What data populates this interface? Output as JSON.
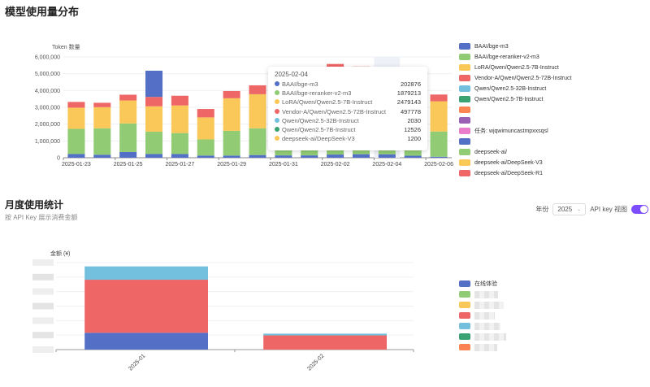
{
  "usage_section": {
    "title": "模型使用量分布"
  },
  "chart_data": [
    {
      "type": "bar",
      "stacked": true,
      "ylabel": "Token 数量",
      "ylim": [
        0,
        6000000
      ],
      "yticks": [
        "0",
        "1,000,000",
        "2,000,000",
        "3,000,000",
        "4,000,000",
        "5,000,000",
        "6,000,000"
      ],
      "categories": [
        "2025-01-23",
        "2025-01-24",
        "2025-01-25",
        "2025-01-26",
        "2025-01-27",
        "2025-01-28",
        "2025-01-29",
        "2025-01-30",
        "2025-01-31",
        "2025-02-01",
        "2025-02-02",
        "2025-02-03",
        "2025-02-04",
        "2025-02-05",
        "2025-02-06"
      ],
      "xticks": [
        "2025-01-23",
        "2025-01-25",
        "2025-01-27",
        "2025-01-29",
        "2025-01-31",
        "2025-02-02",
        "2025-02-04",
        "2025-02-06"
      ],
      "grid": true,
      "legend_position": "right",
      "series": [
        {
          "name": "BAAI/bge-m3",
          "color": "#5470c6",
          "values": [
            220000,
            180000,
            340000,
            220000,
            220000,
            130000,
            130000,
            160000,
            140000,
            140000,
            190000,
            210000,
            202876,
            120000,
            60000
          ]
        },
        {
          "name": "BAAI/bge-reranker-v2-m3",
          "color": "#91cc75",
          "values": [
            1500000,
            1570000,
            1700000,
            1330000,
            1250000,
            960000,
            1470000,
            1590000,
            1650000,
            1810000,
            2110000,
            2060000,
            1879213,
            1800000,
            1500000
          ]
        },
        {
          "name": "LoRA/Qwen/Qwen2.5-7B-Instruct",
          "color": "#fac858",
          "values": [
            1260000,
            1260000,
            1370000,
            1510000,
            1640000,
            1310000,
            1940000,
            2030000,
            2180000,
            2280000,
            2750000,
            2650000,
            2479143,
            2200000,
            1800000
          ]
        },
        {
          "name": "Vendor-A/Qwen/Qwen2.5-72B-Instruct",
          "color": "#ee6666",
          "values": [
            340000,
            260000,
            340000,
            560000,
            580000,
            500000,
            430000,
            530000,
            470000,
            450000,
            530000,
            510000,
            497778,
            500000,
            400000
          ]
        },
        {
          "name": "Qwen/Qwen2.5-32B-Instruct",
          "color": "#73c0de",
          "values": [
            0,
            0,
            0,
            0,
            0,
            0,
            0,
            0,
            0,
            0,
            0,
            0,
            2030,
            0,
            0
          ]
        },
        {
          "name": "Qwen/Qwen2.5-7B-Instruct",
          "color": "#3ba272",
          "values": [
            0,
            0,
            0,
            0,
            0,
            0,
            0,
            0,
            0,
            0,
            0,
            0,
            12526,
            0,
            0
          ]
        },
        {
          "name": "",
          "color": "#5470c6",
          "values": [
            0,
            0,
            0,
            1560000,
            0,
            0,
            0,
            0,
            0,
            0,
            0,
            0,
            0,
            0,
            0
          ]
        },
        {
          "name": "deepseek-ai/DeepSeek-V3",
          "color": "#fac858",
          "values": [
            0,
            0,
            0,
            0,
            0,
            0,
            0,
            0,
            0,
            0,
            0,
            0,
            1200,
            0,
            0
          ]
        }
      ]
    },
    {
      "type": "bar",
      "stacked": true,
      "ylabel": "金额 (¥)",
      "ylim": [
        0,
        6
      ],
      "categories": [
        "2025-01",
        "2025-02"
      ],
      "grid": true,
      "legend_position": "right",
      "series": [
        {
          "name": "在线体验",
          "color": "#5470c6",
          "values": [
            1.16,
            0
          ]
        },
        {
          "name": "",
          "color": "#ee6666",
          "values": [
            3.66,
            0.98
          ]
        },
        {
          "name": "",
          "color": "#73c0de",
          "values": [
            0.92,
            0.12
          ]
        }
      ]
    }
  ],
  "usage_legend": [
    {
      "label": "BAAI/bge-m3",
      "color": "#5470c6"
    },
    {
      "label": "BAAI/bge-reranker-v2-m3",
      "color": "#91cc75"
    },
    {
      "label": "LoRA/Qwen/Qwen2.5-7B-Instruct",
      "color": "#fac858"
    },
    {
      "label": "Vendor-A/Qwen/Qwen2.5-72B-Instruct",
      "color": "#ee6666"
    },
    {
      "label": "Qwen/Qwen2.5-32B-Instruct",
      "color": "#73c0de"
    },
    {
      "label": "Qwen/Qwen2.5-7B-Instruct",
      "color": "#3ba272"
    },
    {
      "label": "",
      "color": "#fc8452"
    },
    {
      "label": "",
      "color": "#9a60b4"
    },
    {
      "label": "任务: wjqwimuncastmpxxsqsl",
      "color": "#ea7ccc"
    },
    {
      "label": "",
      "color": "#5470c6"
    },
    {
      "label": "deepseek-ai/",
      "color": "#91cc75"
    },
    {
      "label": "deepseek-ai/DeepSeek-V3",
      "color": "#fac858"
    },
    {
      "label": "deepseek-ai/DeepSeek-R1",
      "color": "#ee6666"
    }
  ],
  "tooltip": {
    "date": "2025-02-04",
    "rows": [
      {
        "label": "BAAI/bge-m3",
        "value": "202876",
        "color": "#5470c6"
      },
      {
        "label": "BAAI/bge-reranker-v2-m3",
        "value": "1879213",
        "color": "#91cc75"
      },
      {
        "label": "LoRA/Qwen/Qwen2.5-7B-Instruct",
        "value": "2479143",
        "color": "#fac858"
      },
      {
        "label": "Vendor-A/Qwen/Qwen2.5-72B-Instruct",
        "value": "497778",
        "color": "#ee6666"
      },
      {
        "label": "Qwen/Qwen2.5-32B-Instruct",
        "value": "2030",
        "color": "#73c0de"
      },
      {
        "label": "Qwen/Qwen2.5-7B-Instruct",
        "value": "12526",
        "color": "#3ba272"
      },
      {
        "label": "deepseek-ai/DeepSeek-V3",
        "value": "1200",
        "color": "#fac858"
      }
    ]
  },
  "monthly_section": {
    "title": "月度使用统计",
    "subtitle": "按 API Key 展示消费金额",
    "year_label": "年份",
    "year_value": "2025",
    "view_toggle_label": "API key 视图",
    "view_toggle_on": true,
    "accent": "#7c4dff"
  },
  "monthly_legend": [
    {
      "label": "在线体验",
      "color": "#5470c6"
    },
    {
      "label": "",
      "color": "#91cc75"
    },
    {
      "label": "",
      "color": "#fac858"
    },
    {
      "label": "",
      "color": "#ee6666"
    },
    {
      "label": "",
      "color": "#73c0de"
    },
    {
      "label": "",
      "color": "#3ba272"
    },
    {
      "label": "",
      "color": "#fc8452"
    }
  ]
}
